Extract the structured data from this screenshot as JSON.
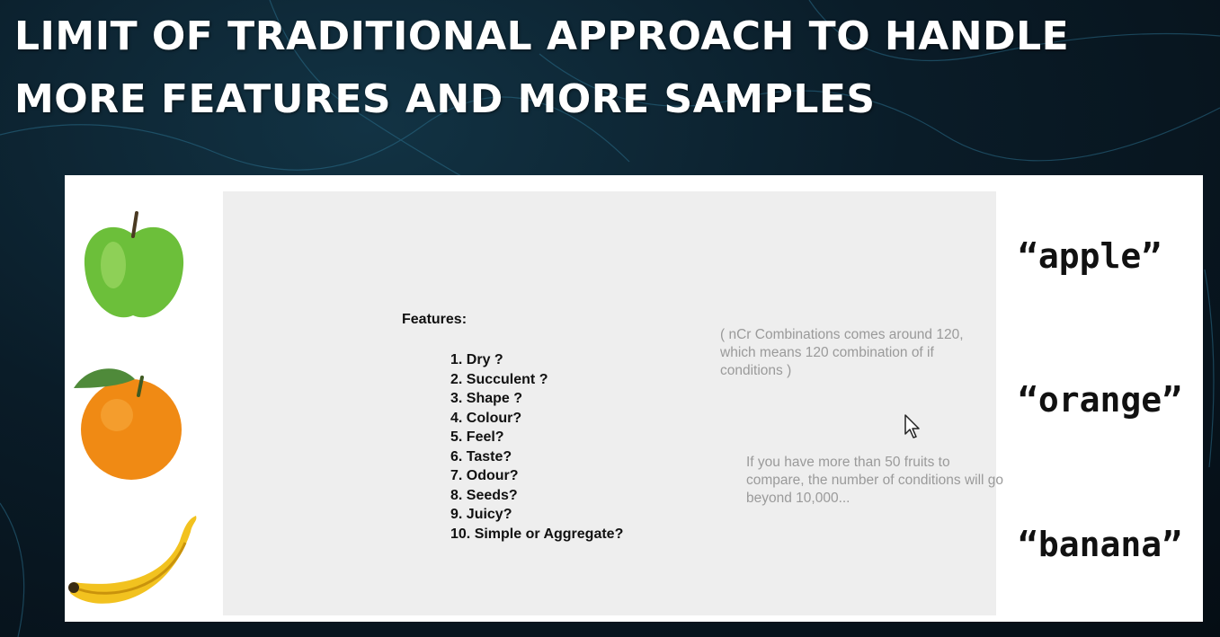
{
  "slide": {
    "title_line1": "LIMIT OF TRADITIONAL APPROACH TO HANDLE",
    "title_line2": "MORE FEATURES AND MORE SAMPLES"
  },
  "features": {
    "heading": "Features:",
    "items": [
      "1. Dry ?",
      "2. Succulent ?",
      "3. Shape ?",
      "4. Colour?",
      "5. Feel?",
      "6. Taste?",
      "7. Odour?",
      "8. Seeds?",
      "9. Juicy?",
      "10. Simple or Aggregate?"
    ]
  },
  "notes": {
    "combinations": "( nCr Combinations comes around 120, which means 120 combination of if conditions )",
    "fruits": "If you have more than 50 fruits to compare, the number of conditions will go beyond 10,000..."
  },
  "labels": {
    "apple": "“apple”",
    "orange": "“orange”",
    "banana": "“banana”"
  },
  "colors": {
    "apple": "#6cbf3a",
    "orange": "#f08a14",
    "banana": "#f2c21f"
  }
}
